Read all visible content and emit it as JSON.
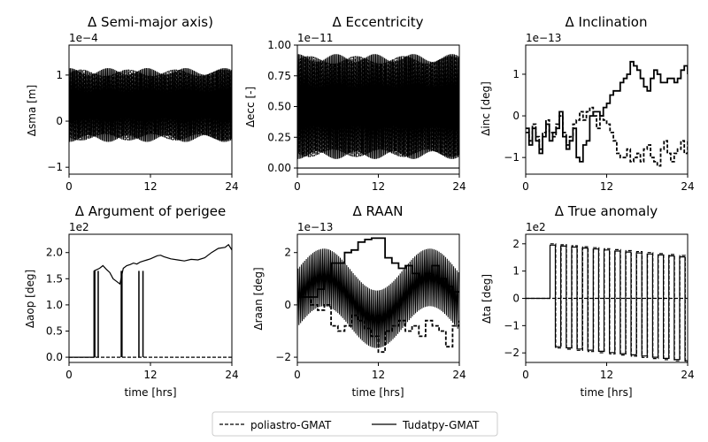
{
  "chart_data": [
    {
      "type": "line",
      "title": "Δ Semi-major axis)",
      "ylabel": "Δsma [m]",
      "xlabel": "",
      "offset_label": "1e−4",
      "xlim": [
        0,
        24
      ],
      "xticks": [
        0,
        12,
        24
      ],
      "ylim": [
        -1.15,
        1.65
      ],
      "yticks": [
        -1,
        0,
        1
      ],
      "pattern": {
        "kind": "oscillation",
        "period": 0.22,
        "center": 0.35,
        "amplitude": 0.7,
        "modulation": 0.1
      },
      "series": [
        {
          "name": "poliastro-GMAT",
          "style": "dashed",
          "note": "band approx -0.8 to 1.5"
        },
        {
          "name": "Tudatpy-GMAT",
          "style": "solid",
          "note": "band approx -0.9 to 1.4"
        }
      ]
    },
    {
      "type": "line",
      "title": "Δ Eccentricity",
      "ylabel": "Δecc [-]",
      "xlabel": "",
      "offset_label": "1e−11",
      "xlim": [
        0,
        24
      ],
      "xticks": [
        0,
        12,
        24
      ],
      "ylim": [
        -0.05,
        1.0
      ],
      "yticks": [
        0.0,
        0.25,
        0.5,
        0.75,
        1.0
      ],
      "pattern": {
        "kind": "oscillation",
        "period": 0.22,
        "center": 0.5,
        "amplitude": 0.38,
        "modulation": 0.08
      },
      "series": [
        {
          "name": "poliastro-GMAT",
          "style": "dashed",
          "note": "band approx 0.1 to 0.93"
        },
        {
          "name": "Tudatpy-GMAT",
          "style": "solid",
          "note": "flat at 0 plus band"
        }
      ]
    },
    {
      "type": "line",
      "title": "Δ Inclination",
      "ylabel": "Δinc [deg]",
      "xlabel": "",
      "offset_label": "1e−13",
      "xlim": [
        0,
        24
      ],
      "xticks": [
        0,
        12,
        24
      ],
      "ylim": [
        -1.4,
        1.7
      ],
      "yticks": [
        -1,
        0,
        1
      ],
      "series": [
        {
          "name": "poliastro-GMAT",
          "style": "dashed",
          "x": [
            0,
            0.5,
            1,
            1.5,
            2,
            2.5,
            3,
            3.5,
            4,
            4.5,
            5,
            5.5,
            6,
            6.5,
            7,
            7.5,
            8,
            8.5,
            9,
            9.5,
            10,
            10.5,
            11,
            11.5,
            12,
            12.5,
            13,
            13.5,
            14,
            14.5,
            15,
            15.5,
            16,
            16.5,
            17,
            17.5,
            18,
            18.5,
            19,
            19.5,
            20,
            20.5,
            21,
            21.5,
            22,
            22.5,
            23,
            23.5,
            24
          ],
          "y": [
            -0.4,
            -0.6,
            -0.2,
            -0.5,
            -0.8,
            -0.4,
            -0.1,
            -0.4,
            -0.5,
            -0.2,
            0.0,
            -0.4,
            -0.7,
            -0.5,
            -0.2,
            -0.1,
            0.1,
            -0.1,
            0.1,
            0.2,
            0.0,
            -0.3,
            0.0,
            -0.1,
            -0.2,
            -0.4,
            -0.6,
            -0.9,
            -1.0,
            -1.0,
            -0.8,
            -1.1,
            -1.0,
            -0.9,
            -1.1,
            -0.8,
            -0.7,
            -1.0,
            -1.1,
            -1.2,
            -0.8,
            -0.6,
            -0.9,
            -1.1,
            -0.9,
            -0.8,
            -0.6,
            -0.9,
            -0.6
          ]
        },
        {
          "name": "Tudatpy-GMAT",
          "style": "solid",
          "x": [
            0,
            0.5,
            1,
            1.5,
            2,
            2.5,
            3,
            3.5,
            4,
            4.5,
            5,
            5.5,
            6,
            6.5,
            7,
            7.5,
            8,
            8.5,
            9,
            9.5,
            10,
            10.5,
            11,
            11.5,
            12,
            12.5,
            13,
            13.5,
            14,
            14.5,
            15,
            15.5,
            16,
            16.5,
            17,
            17.5,
            18,
            18.5,
            19,
            19.5,
            20,
            20.5,
            21,
            21.5,
            22,
            22.5,
            23,
            23.5,
            24
          ],
          "y": [
            -0.3,
            -0.7,
            -0.3,
            -0.6,
            -0.9,
            -0.5,
            -0.2,
            -0.6,
            -0.4,
            -0.3,
            0.1,
            -0.5,
            -0.8,
            -0.6,
            -0.3,
            -1.0,
            -1.1,
            -0.7,
            -0.6,
            0.0,
            0.1,
            0.1,
            0.0,
            0.2,
            0.3,
            0.5,
            0.6,
            0.6,
            0.8,
            0.9,
            1.0,
            1.3,
            1.2,
            1.1,
            0.9,
            0.7,
            0.6,
            0.9,
            1.1,
            1.0,
            0.8,
            0.8,
            0.9,
            0.9,
            0.8,
            0.9,
            1.1,
            1.2,
            1.0
          ]
        }
      ]
    },
    {
      "type": "line",
      "title": "Δ Argument of perigee",
      "ylabel": "Δaop [deg]",
      "xlabel": "time [hrs]",
      "offset_label": "1e2",
      "xlim": [
        0,
        24
      ],
      "xticks": [
        0,
        12,
        24
      ],
      "ylim": [
        -0.1,
        2.35
      ],
      "yticks": [
        0.0,
        0.5,
        1.0,
        1.5,
        2.0
      ],
      "spikes": [
        [
          3.6,
          3.9
        ],
        [
          4.2,
          4.4
        ],
        [
          7.6,
          7.9
        ],
        [
          10.2,
          10.4
        ],
        [
          10.8,
          11.0
        ]
      ],
      "series": [
        {
          "name": "poliastro-GMAT",
          "style": "dashed",
          "x": [
            0,
            24
          ],
          "y": [
            0.0,
            0.0
          ]
        },
        {
          "name": "Tudatpy-GMAT",
          "style": "solid",
          "x": [
            0,
            3.7,
            3.7,
            4.5,
            5.0,
            5.5,
            6.0,
            6.5,
            7.0,
            7.5,
            8.0,
            8.5,
            9.0,
            9.5,
            10.0,
            10.5,
            11.0,
            11.5,
            12.0,
            13.0,
            13.5,
            14.0,
            15.0,
            16.0,
            17.0,
            18.0,
            19.0,
            20.0,
            21.0,
            22.0,
            23.0,
            23.5,
            24.0
          ],
          "y": [
            0.0,
            0.0,
            1.65,
            1.7,
            1.75,
            1.68,
            1.62,
            1.5,
            1.45,
            1.4,
            1.7,
            1.75,
            1.77,
            1.8,
            1.78,
            1.82,
            1.84,
            1.86,
            1.88,
            1.94,
            1.95,
            1.92,
            1.88,
            1.86,
            1.84,
            1.87,
            1.86,
            1.9,
            2.0,
            2.08,
            2.1,
            2.15,
            2.05
          ]
        }
      ]
    },
    {
      "type": "line",
      "title": "Δ RAAN",
      "ylabel": "Δraan [deg]",
      "xlabel": "time [hrs]",
      "offset_label": "1e−13",
      "xlim": [
        0,
        24
      ],
      "xticks": [
        0,
        12,
        24
      ],
      "ylim": [
        -2.2,
        2.7
      ],
      "yticks": [
        -2,
        0,
        2
      ],
      "series": [
        {
          "name": "poliastro-GMAT",
          "style": "dashed",
          "x": [
            0,
            1,
            2,
            3,
            4,
            5,
            6,
            7,
            8,
            9,
            10,
            11,
            12,
            13,
            14,
            15,
            16,
            17,
            18,
            19,
            20,
            21,
            22,
            23,
            24
          ],
          "y": [
            0.3,
            0.3,
            0.0,
            -0.2,
            0.0,
            -0.8,
            -1.0,
            -0.8,
            -0.4,
            -0.6,
            -0.9,
            -1.2,
            -1.8,
            -1.0,
            -0.8,
            -0.6,
            -1.0,
            -0.8,
            -1.2,
            -0.6,
            -0.8,
            -1.0,
            -1.6,
            -0.8,
            -0.6
          ]
        },
        {
          "name": "Tudatpy-GMAT",
          "style": "solid",
          "x": [
            0,
            1,
            2,
            3,
            4,
            5,
            6,
            7,
            8,
            9,
            10,
            11,
            12,
            13,
            14,
            15,
            16,
            17,
            18,
            19,
            20,
            21,
            22,
            23,
            24
          ],
          "y": [
            0.3,
            0.3,
            0.3,
            0.6,
            1.0,
            1.6,
            1.6,
            2.0,
            2.1,
            2.4,
            2.5,
            2.55,
            2.55,
            1.8,
            1.6,
            1.4,
            1.5,
            1.2,
            1.0,
            1.2,
            1.5,
            1.0,
            0.7,
            0.5,
            0.5
          ]
        }
      ]
    },
    {
      "type": "line",
      "title": "Δ True anomaly",
      "ylabel": "Δta [deg]",
      "xlabel": "time [hrs]",
      "offset_label": "1e2",
      "xlim": [
        0,
        24
      ],
      "xticks": [
        0,
        12,
        24
      ],
      "ylim": [
        -2.35,
        2.35
      ],
      "yticks": [
        -2,
        -1,
        0,
        1,
        2
      ],
      "square_wave": {
        "start": 3.6,
        "period": 1.6,
        "low": [
          -1.75,
          -2.05
        ],
        "high": [
          1.95,
          1.7
        ]
      },
      "series": [
        {
          "name": "poliastro-GMAT",
          "style": "dashed",
          "x": [
            0,
            24
          ],
          "y": [
            0.0,
            0.0
          ]
        },
        {
          "name": "Tudatpy-GMAT",
          "style": "solid",
          "note": "square wave between about -2 and 2 starting near 3.6 h"
        }
      ]
    }
  ],
  "legend": {
    "placement": "bottom-center",
    "items": [
      {
        "label": "poliastro-GMAT",
        "style": "dashed"
      },
      {
        "label": "Tudatpy-GMAT",
        "style": "solid"
      }
    ]
  }
}
